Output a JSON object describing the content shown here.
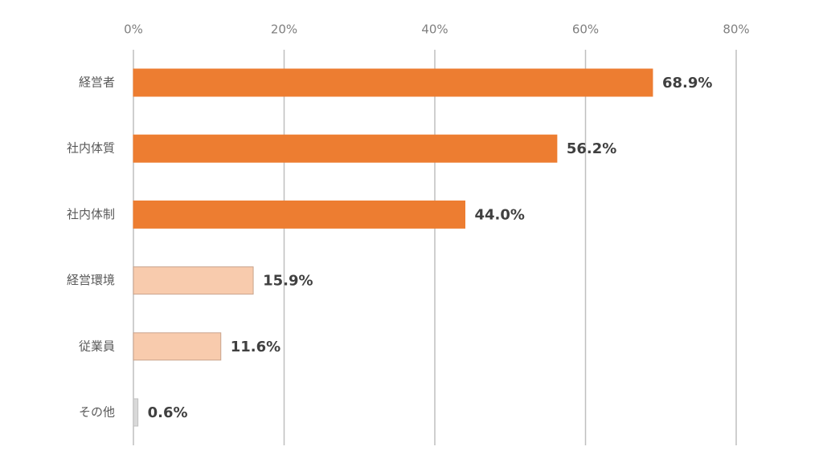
{
  "chart_data": {
    "type": "bar",
    "orientation": "horizontal",
    "categories": [
      "経営者",
      "社内体質",
      "社内体制",
      "経営環境",
      "従業員",
      "その他"
    ],
    "values": [
      68.9,
      56.2,
      44.0,
      15.9,
      11.6,
      0.6
    ],
    "value_labels": [
      "68.9%",
      "56.2%",
      "44.0%",
      "15.9%",
      "11.6%",
      "0.6%"
    ],
    "xlim": [
      0,
      80
    ],
    "x_ticks": [
      0,
      20,
      40,
      60,
      80
    ],
    "x_tick_labels": [
      "0%",
      "20%",
      "40%",
      "60%",
      "80%"
    ],
    "x_axis_position": "top",
    "grid": true,
    "bar_colors": [
      "#ED7D31",
      "#ED7D31",
      "#ED7D31",
      "#F8CBAD",
      "#F8CBAD",
      "#D9D9D9"
    ],
    "bar_border_colors": [
      "#ED7D31",
      "#ED7D31",
      "#ED7D31",
      "#C9A38C",
      "#C9A38C",
      "#BFBFBF"
    ],
    "grid_color": "#BFBFBF"
  }
}
